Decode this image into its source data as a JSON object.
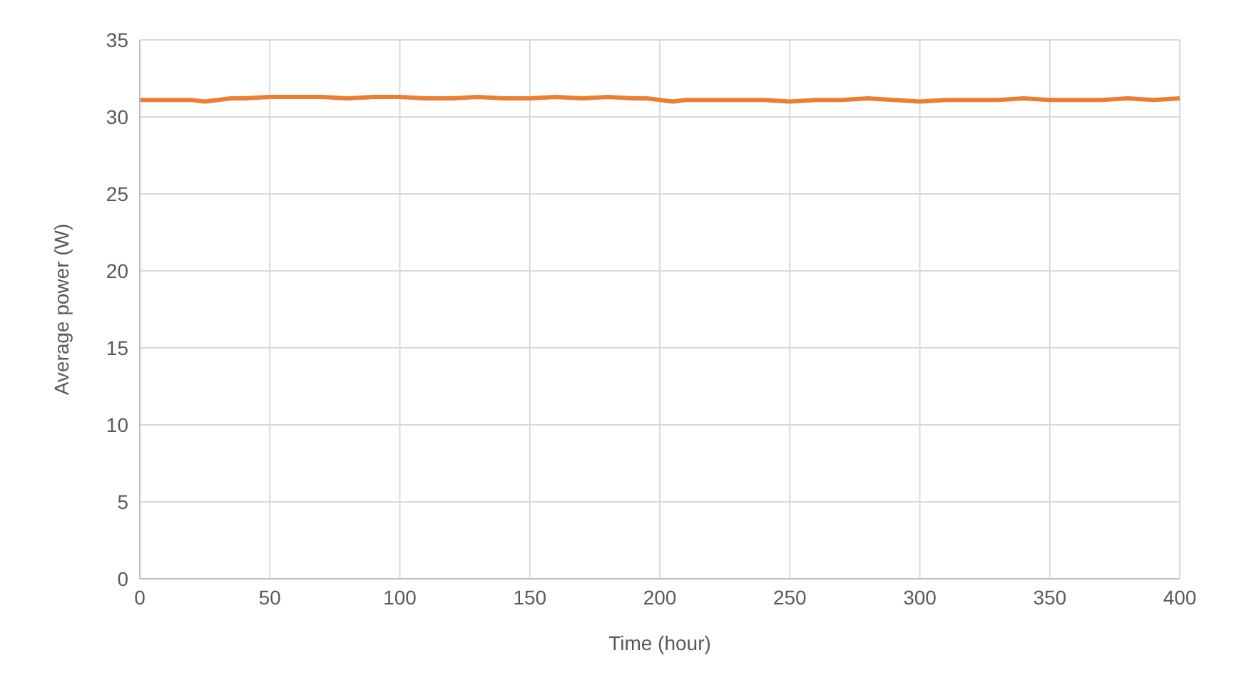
{
  "chart_data": {
    "type": "line",
    "xlabel": "Time (hour)",
    "ylabel": "Average power (W)",
    "x": [
      0,
      5,
      10,
      15,
      20,
      25,
      30,
      35,
      40,
      50,
      60,
      70,
      80,
      90,
      100,
      110,
      120,
      130,
      140,
      150,
      160,
      170,
      180,
      190,
      195,
      200,
      205,
      210,
      220,
      230,
      240,
      250,
      260,
      270,
      280,
      290,
      300,
      310,
      320,
      330,
      340,
      350,
      360,
      370,
      380,
      390,
      400
    ],
    "series": [
      {
        "color": "#ed7d31",
        "values": [
          31.1,
          31.1,
          31.1,
          31.1,
          31.1,
          31.0,
          31.1,
          31.2,
          31.2,
          31.3,
          31.3,
          31.3,
          31.2,
          31.3,
          31.3,
          31.2,
          31.2,
          31.3,
          31.2,
          31.2,
          31.3,
          31.2,
          31.3,
          31.2,
          31.2,
          31.1,
          31.0,
          31.1,
          31.1,
          31.1,
          31.1,
          31.0,
          31.1,
          31.1,
          31.2,
          31.1,
          31.0,
          31.1,
          31.1,
          31.1,
          31.2,
          31.1,
          31.1,
          31.1,
          31.2,
          31.1,
          31.2
        ]
      }
    ],
    "xlim": [
      0,
      400
    ],
    "xticks": [
      0,
      50,
      100,
      150,
      200,
      250,
      300,
      350,
      400
    ],
    "ylim": [
      0,
      35
    ],
    "yticks": [
      0,
      5,
      10,
      15,
      20,
      25,
      30,
      35
    ],
    "grid": true,
    "marker": "none",
    "line_style": "solid",
    "legend": false
  }
}
